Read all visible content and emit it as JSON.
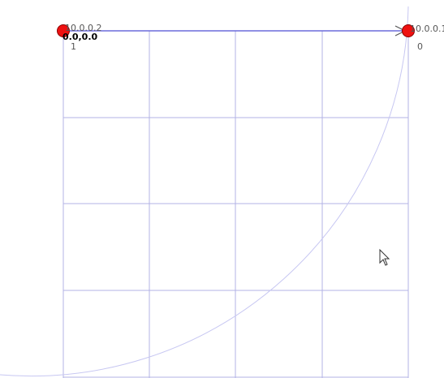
{
  "colors": {
    "grid": "#b3b3e6",
    "edge": "#6b6bdc",
    "arc": "#c7c7f2",
    "node_fill": "#ee1111",
    "node_stroke": "#8a0000",
    "label": "#555555"
  },
  "nodes": [
    {
      "id_label": "10.0.0.2",
      "coord_label": "0.0,0.0",
      "index_label": "1",
      "icon": "node-dot-icon"
    },
    {
      "id_label": "10.0.0.1",
      "index_label": "0",
      "icon": "node-dot-icon"
    }
  ],
  "edge": {
    "from_index": 1,
    "to_index": 0,
    "icon": "arrow-right-icon"
  },
  "cursor": {
    "icon": "mouse-pointer-icon"
  }
}
